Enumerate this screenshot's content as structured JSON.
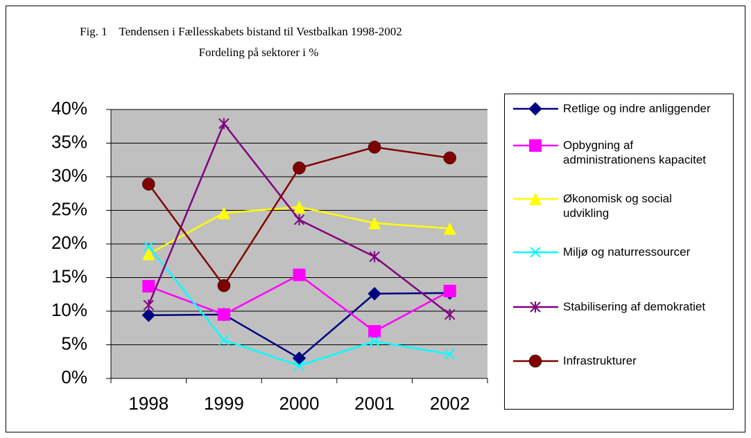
{
  "chart_data": {
    "type": "line",
    "title": "Fig. 1    Tendensen i Fællesskabets bistand til Vestbalkan 1998-2002",
    "subtitle": "Fordeling på sektorer i %",
    "categories": [
      "1998",
      "1999",
      "2000",
      "2001",
      "2002"
    ],
    "ylim": [
      0,
      40
    ],
    "yticks": [
      {
        "value": 0,
        "label": "0%"
      },
      {
        "value": 5,
        "label": "5%"
      },
      {
        "value": 10,
        "label": "10%"
      },
      {
        "value": 15,
        "label": "15%"
      },
      {
        "value": 20,
        "label": "20%"
      },
      {
        "value": 25,
        "label": "25%"
      },
      {
        "value": 30,
        "label": "30%"
      },
      {
        "value": 35,
        "label": "35%"
      },
      {
        "value": 40,
        "label": "40%"
      }
    ],
    "grid": true,
    "legend": "right",
    "series": [
      {
        "name": "Retlige og indre anliggender",
        "color": "#000080",
        "marker": "diamond",
        "values": [
          9.4,
          9.5,
          3.0,
          12.6,
          12.7
        ]
      },
      {
        "name": "Opbygning af administrationens kapacitet",
        "color": "#ff00ff",
        "marker": "square",
        "values": [
          13.7,
          9.5,
          15.4,
          7.0,
          13.0
        ]
      },
      {
        "name": "Økonomisk og social udvikling",
        "color": "#ffff00",
        "marker": "triangle",
        "values": [
          18.5,
          24.6,
          25.5,
          23.1,
          22.3
        ]
      },
      {
        "name": "Miljø og naturressourcer",
        "color": "#00ffff",
        "marker": "x",
        "values": [
          19.6,
          5.7,
          1.9,
          5.5,
          3.6
        ]
      },
      {
        "name": "Stabilisering af demokratiet",
        "color": "#800080",
        "marker": "asterisk",
        "values": [
          10.9,
          37.9,
          23.6,
          18.1,
          9.5
        ]
      },
      {
        "name": "Infrastrukturer",
        "color": "#800000",
        "marker": "circle",
        "values": [
          28.9,
          13.8,
          31.3,
          34.4,
          32.8
        ]
      }
    ]
  }
}
